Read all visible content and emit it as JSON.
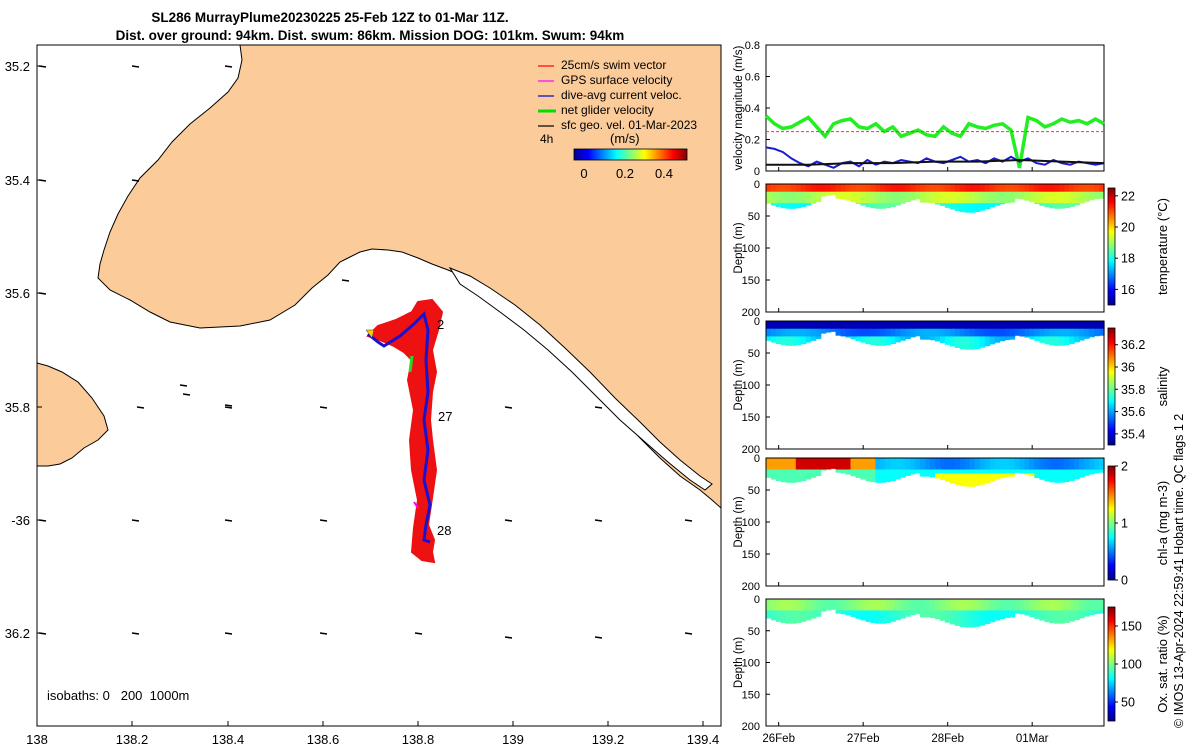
{
  "title_line1": "SL286 MurrayPlume20230225 25-Feb 12Z to 01-Mar 11Z.",
  "title_line2": "Dist. over ground: 94km. Dist. swum: 86km. Mission DOG: 101km. Swum: 94km",
  "credit": "© IMOS 13-Apr-2024 22:59:41 Hobart time. QC flags 1  2",
  "map": {
    "lat_ticks": [
      "35.2",
      "35.4",
      "35.6",
      "35.8",
      "-36",
      "36.2"
    ],
    "lon_ticks": [
      "138",
      "138.2",
      "138.4",
      "138.6",
      "138.8",
      "139",
      "139.2",
      "139.4"
    ],
    "isobaths_label": "isobaths: 0   200  1000m",
    "time_label": "4h",
    "colorbar_title": "(m/s)",
    "colorbar_ticks": [
      "0",
      "0.2",
      "0.4"
    ],
    "day_labels": [
      "2",
      "27",
      "28"
    ],
    "legend": [
      {
        "label": "25cm/s swim vector",
        "color": "#ff0000"
      },
      {
        "label": "GPS surface velocity",
        "color": "#ff00ff"
      },
      {
        "label": "dive-avg current veloc.",
        "color": "#0000cc"
      },
      {
        "label": "net glider velocity",
        "color": "#00dd00"
      },
      {
        "label": "sfc geo. vel. 01-Mar-2023",
        "color": "#000000"
      }
    ],
    "colors": {
      "land": "#fbcb9a",
      "water": "#ffffff",
      "track": "#1a10d0"
    }
  },
  "chart_data": [
    {
      "type": "line",
      "ylabel": "velocity magnitude (m/s)",
      "ylim": [
        0,
        0.8
      ],
      "yticks": [
        "0",
        "0.2",
        "0.4",
        "0.6",
        "0.8"
      ],
      "x_range_days": [
        0,
        4
      ],
      "series": [
        {
          "name": "net glider velocity",
          "color": "#22ee22",
          "x": [
            0,
            0.1,
            0.2,
            0.3,
            0.4,
            0.5,
            0.6,
            0.7,
            0.8,
            0.9,
            1.0,
            1.1,
            1.2,
            1.3,
            1.4,
            1.5,
            1.6,
            1.7,
            1.8,
            1.9,
            2.0,
            2.1,
            2.2,
            2.3,
            2.4,
            2.5,
            2.6,
            2.7,
            2.8,
            2.9,
            3.0,
            3.1,
            3.2,
            3.3,
            3.4,
            3.5,
            3.6,
            3.7,
            3.8,
            3.9,
            4.0
          ],
          "values": [
            0.35,
            0.3,
            0.27,
            0.28,
            0.31,
            0.34,
            0.28,
            0.22,
            0.3,
            0.32,
            0.33,
            0.28,
            0.27,
            0.3,
            0.25,
            0.28,
            0.22,
            0.24,
            0.26,
            0.23,
            0.22,
            0.28,
            0.24,
            0.22,
            0.3,
            0.28,
            0.27,
            0.29,
            0.3,
            0.26,
            0.02,
            0.34,
            0.32,
            0.28,
            0.3,
            0.33,
            0.31,
            0.32,
            0.3,
            0.33,
            0.3
          ]
        },
        {
          "name": "dive-avg current veloc.",
          "color": "#1a1ad0",
          "x": [
            0,
            0.1,
            0.2,
            0.3,
            0.4,
            0.5,
            0.6,
            0.7,
            0.8,
            0.9,
            1.0,
            1.1,
            1.2,
            1.3,
            1.4,
            1.5,
            1.6,
            1.7,
            1.8,
            1.9,
            2.0,
            2.1,
            2.2,
            2.3,
            2.4,
            2.5,
            2.6,
            2.7,
            2.8,
            2.9,
            3.0,
            3.1,
            3.2,
            3.3,
            3.4,
            3.5,
            3.6,
            3.7,
            3.8,
            3.9,
            4.0
          ],
          "values": [
            0.15,
            0.14,
            0.12,
            0.08,
            0.05,
            0.03,
            0.06,
            0.04,
            0.02,
            0.05,
            0.06,
            0.03,
            0.07,
            0.04,
            0.06,
            0.05,
            0.07,
            0.06,
            0.05,
            0.08,
            0.06,
            0.05,
            0.07,
            0.09,
            0.06,
            0.07,
            0.05,
            0.08,
            0.06,
            0.09,
            0.06,
            0.08,
            0.05,
            0.04,
            0.07,
            0.05,
            0.04,
            0.06,
            0.05,
            0.04,
            0.05
          ]
        },
        {
          "name": "sfc geo. vel.",
          "color": "#111111",
          "x": [
            0,
            0.5,
            1.0,
            1.5,
            2.0,
            2.5,
            3.0,
            3.5,
            4.0
          ],
          "values": [
            0.04,
            0.04,
            0.05,
            0.05,
            0.06,
            0.06,
            0.07,
            0.06,
            0.05
          ]
        },
        {
          "name": "25cm/s swim",
          "color": "#ff3333",
          "x": [
            0,
            4
          ],
          "values": [
            0.25,
            0.25
          ]
        }
      ]
    },
    {
      "type": "heatmap",
      "ylabel": "Depth (m)",
      "ylim": [
        0,
        200
      ],
      "yticks": [
        "0",
        "50",
        "100",
        "150",
        "200"
      ],
      "colorbar_label": "temperature (°C)",
      "colorbar_ticks": [
        "16",
        "18",
        "20",
        "22"
      ],
      "clim": [
        15,
        22.5
      ]
    },
    {
      "type": "heatmap",
      "ylabel": "Depth (m)",
      "ylim": [
        0,
        200
      ],
      "yticks": [
        "0",
        "50",
        "100",
        "150",
        "200"
      ],
      "colorbar_label": "salinity",
      "colorbar_ticks": [
        "35.4",
        "35.6",
        "35.8",
        "36",
        "36.2"
      ],
      "clim": [
        35.3,
        36.35
      ]
    },
    {
      "type": "heatmap",
      "ylabel": "Depth (m)",
      "ylim": [
        0,
        200
      ],
      "yticks": [
        "0",
        "50",
        "100",
        "150",
        "200"
      ],
      "colorbar_label": "chl-a (mg m-3)",
      "colorbar_ticks": [
        "0",
        "1",
        "2"
      ],
      "clim": [
        0,
        2
      ]
    },
    {
      "type": "heatmap",
      "ylabel": "Depth (m)",
      "ylim": [
        0,
        200
      ],
      "yticks": [
        "0",
        "50",
        "100",
        "150",
        "200"
      ],
      "colorbar_label": "Ox. sat. ratio (%)",
      "colorbar_ticks": [
        "50",
        "100",
        "150"
      ],
      "clim": [
        25,
        175
      ]
    }
  ],
  "time_axis_labels": [
    "26Feb",
    "27Feb",
    "28Feb",
    "01Mar"
  ]
}
